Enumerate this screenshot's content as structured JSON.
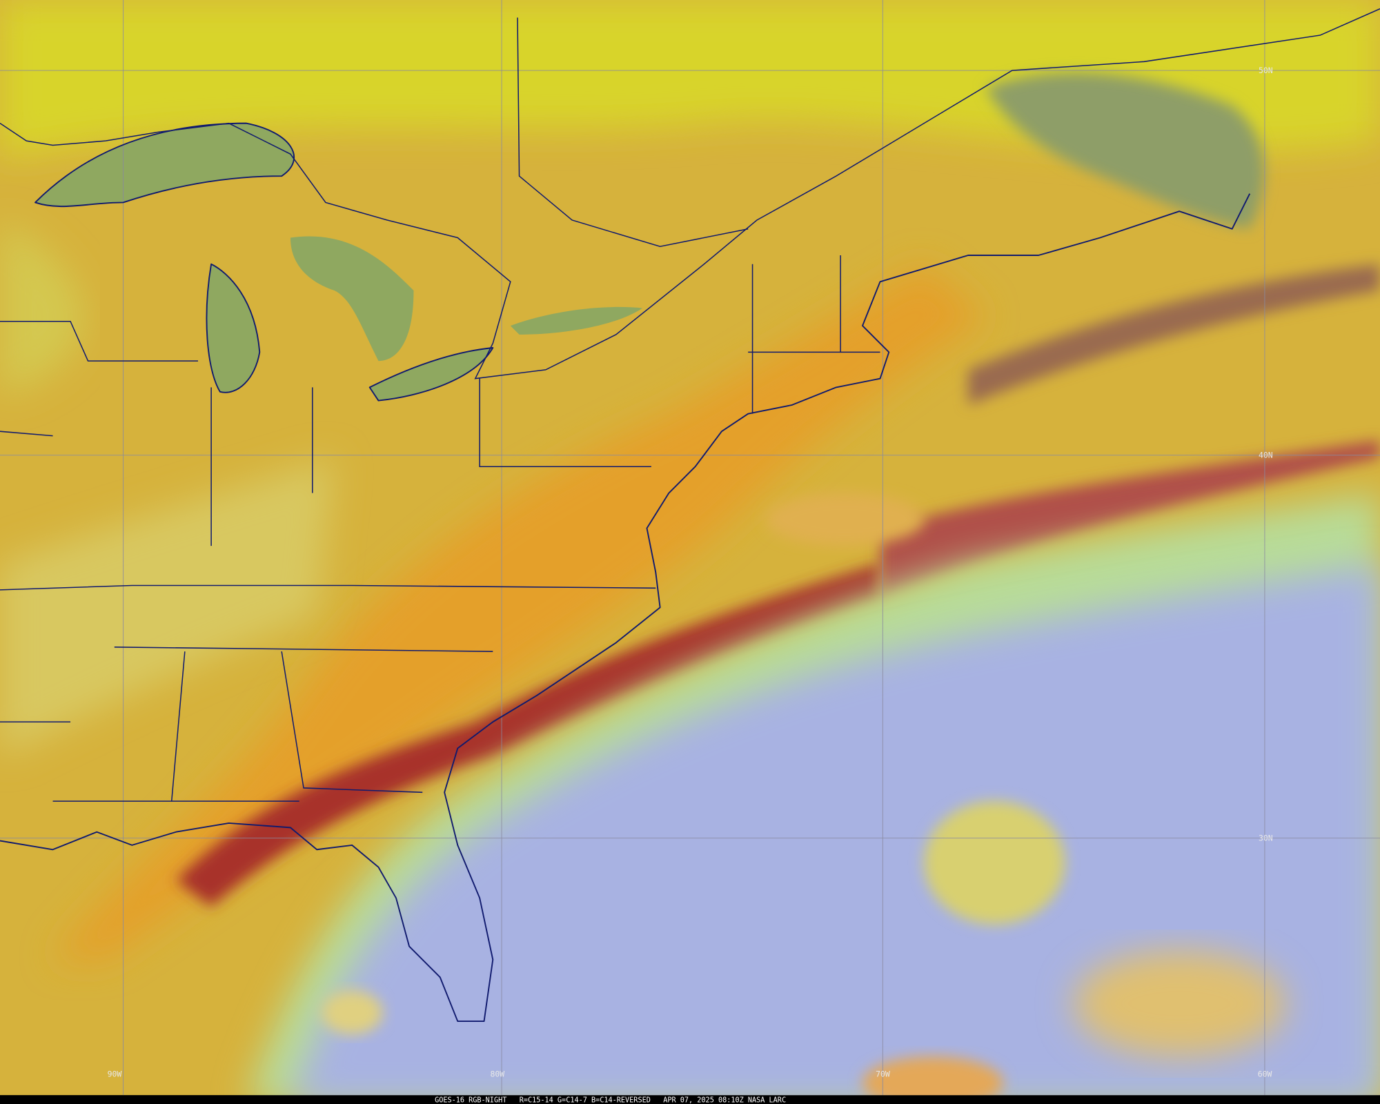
{
  "grid_labels": {
    "latitudes": [
      "50N",
      "40N",
      "30N"
    ],
    "longitudes": [
      "90W",
      "80W",
      "70W",
      "60W"
    ]
  },
  "footer": {
    "caption": "GOES-16 RGB-NIGHT   R=C15-14 G=C14-7 B=C14-REVERSED   APR 07, 2025 08:10Z NASA LARC"
  }
}
